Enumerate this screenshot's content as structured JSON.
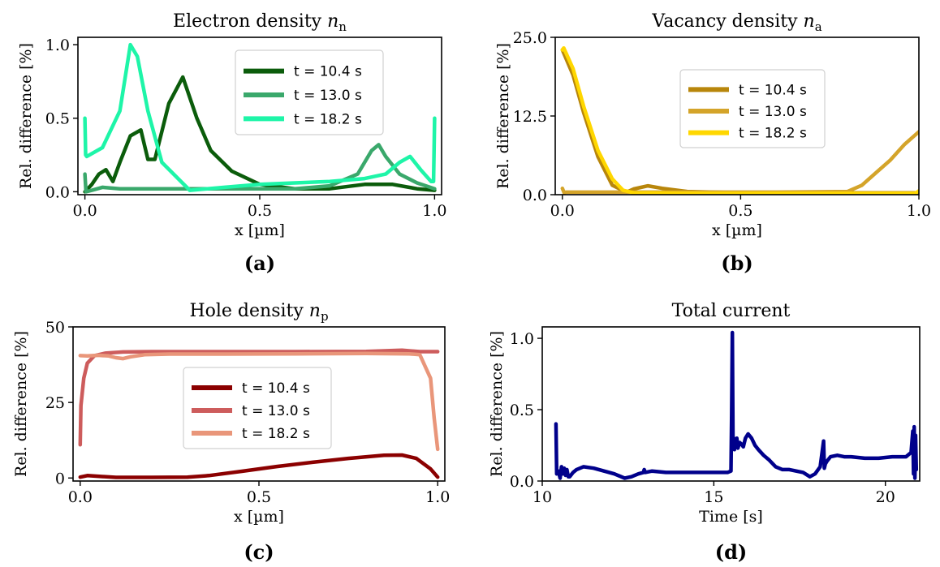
{
  "chart_data": [
    {
      "id": "a",
      "type": "line",
      "title": "Electron density n",
      "title_sub": "n",
      "xlabel": "x [µm]",
      "ylabel": "Rel. difference [%]",
      "panel_label": "(a)",
      "xlim": [
        -0.02,
        1.02
      ],
      "ylim": [
        -0.02,
        1.05
      ],
      "xticks": [
        0.0,
        0.5,
        1.0
      ],
      "xtick_labels": [
        "0.0",
        "0.5",
        "1.0"
      ],
      "yticks": [
        0.0,
        0.5,
        1.0
      ],
      "ytick_labels": [
        "0.0",
        "0.5",
        "1.0"
      ],
      "legend_position": "upper center",
      "series": [
        {
          "name": "t = 10.4 s",
          "color": "#0b5c0b",
          "x": [
            0.0,
            0.02,
            0.04,
            0.06,
            0.08,
            0.1,
            0.13,
            0.16,
            0.18,
            0.2,
            0.24,
            0.28,
            0.32,
            0.36,
            0.42,
            0.5,
            0.6,
            0.7,
            0.8,
            0.88,
            0.95,
            1.0
          ],
          "y": [
            0.0,
            0.05,
            0.12,
            0.15,
            0.07,
            0.2,
            0.38,
            0.42,
            0.22,
            0.22,
            0.6,
            0.78,
            0.5,
            0.28,
            0.14,
            0.05,
            0.02,
            0.02,
            0.05,
            0.05,
            0.02,
            0.01
          ]
        },
        {
          "name": "t = 13.0 s",
          "color": "#3aa86b",
          "x": [
            0.0,
            0.003,
            0.02,
            0.05,
            0.1,
            0.2,
            0.4,
            0.6,
            0.7,
            0.78,
            0.82,
            0.84,
            0.86,
            0.9,
            0.95,
            1.0
          ],
          "y": [
            0.12,
            0.0,
            0.01,
            0.03,
            0.02,
            0.02,
            0.02,
            0.02,
            0.04,
            0.12,
            0.28,
            0.32,
            0.24,
            0.12,
            0.06,
            0.02
          ]
        },
        {
          "name": "t = 18.2 s",
          "color": "#1ef5a8",
          "x": [
            0.0,
            0.002,
            0.005,
            0.05,
            0.1,
            0.13,
            0.15,
            0.18,
            0.22,
            0.3,
            0.4,
            0.5,
            0.6,
            0.7,
            0.8,
            0.86,
            0.9,
            0.93,
            0.96,
            0.99,
            0.997,
            1.0
          ],
          "y": [
            0.5,
            0.25,
            0.24,
            0.3,
            0.55,
            1.0,
            0.92,
            0.55,
            0.2,
            0.01,
            0.03,
            0.05,
            0.06,
            0.07,
            0.09,
            0.12,
            0.2,
            0.24,
            0.15,
            0.07,
            0.07,
            0.5
          ]
        }
      ]
    },
    {
      "id": "b",
      "type": "line",
      "title": "Vacancy density n",
      "title_sub": "a",
      "xlabel": "x [µm]",
      "ylabel": "Rel. difference [%]",
      "panel_label": "(b)",
      "xlim": [
        -0.02,
        1.0
      ],
      "ylim": [
        0.0,
        25.0
      ],
      "xticks": [
        0.0,
        0.5,
        1.0
      ],
      "xtick_labels": [
        "0.0",
        "0.5",
        "1.0"
      ],
      "yticks": [
        0.0,
        12.5,
        25.0
      ],
      "ytick_labels": [
        "0.0",
        "12.5",
        "25.0"
      ],
      "legend_position": "center",
      "series": [
        {
          "name": "t = 10.4 s",
          "color": "#b8860b",
          "x": [
            0.0,
            0.03,
            0.06,
            0.1,
            0.14,
            0.18,
            0.2,
            0.24,
            0.28,
            0.35,
            0.5,
            0.7,
            0.9,
            1.0
          ],
          "y": [
            23.0,
            19.0,
            13.0,
            6.0,
            1.5,
            0.4,
            0.9,
            1.4,
            1.0,
            0.5,
            0.3,
            0.3,
            0.3,
            0.3
          ]
        },
        {
          "name": "t = 13.0 s",
          "color": "#d4a42a",
          "x": [
            0.0,
            0.005,
            0.01,
            0.3,
            0.6,
            0.8,
            0.84,
            0.88,
            0.92,
            0.96,
            1.0
          ],
          "y": [
            1.0,
            0.3,
            0.4,
            0.4,
            0.4,
            0.5,
            1.5,
            3.5,
            5.5,
            8.0,
            10.0
          ]
        },
        {
          "name": "t = 18.2 s",
          "color": "#ffd700",
          "x": [
            0.0,
            0.004,
            0.03,
            0.06,
            0.1,
            0.14,
            0.17,
            0.2,
            0.4,
            0.6,
            0.8,
            0.99,
            1.0
          ],
          "y": [
            23.0,
            23.3,
            20.0,
            14.0,
            7.0,
            2.5,
            0.7,
            0.3,
            0.2,
            0.2,
            0.2,
            0.2,
            0.6
          ]
        }
      ]
    },
    {
      "id": "c",
      "type": "line",
      "title": "Hole density n",
      "title_sub": "p",
      "xlabel": "x [µm]",
      "ylabel": "Rel. difference [%]",
      "panel_label": "(c)",
      "xlim": [
        -0.02,
        1.02
      ],
      "ylim": [
        -1.0,
        50.0
      ],
      "xticks": [
        0.0,
        0.5,
        1.0
      ],
      "xtick_labels": [
        "0.0",
        "0.5",
        "1.0"
      ],
      "yticks": [
        0,
        25,
        50
      ],
      "ytick_labels": [
        "0",
        "25",
        "50"
      ],
      "legend_position": "center",
      "series": [
        {
          "name": "t = 10.4 s",
          "color": "#8b0000",
          "x": [
            0.0,
            0.02,
            0.1,
            0.2,
            0.3,
            0.36,
            0.45,
            0.55,
            0.65,
            0.75,
            0.85,
            0.9,
            0.94,
            0.98,
            1.0
          ],
          "y": [
            0.3,
            0.8,
            0.2,
            0.2,
            0.3,
            0.8,
            2.2,
            3.8,
            5.2,
            6.5,
            7.5,
            7.6,
            6.5,
            3.0,
            0.3
          ]
        },
        {
          "name": "t = 13.0 s",
          "color": "#cd5c5c",
          "x": [
            0.0,
            0.002,
            0.01,
            0.02,
            0.04,
            0.07,
            0.12,
            0.2,
            0.4,
            0.6,
            0.8,
            0.9,
            0.95,
            1.0
          ],
          "y": [
            11.0,
            24.0,
            33.0,
            38.0,
            40.5,
            41.3,
            41.7,
            41.8,
            41.8,
            41.8,
            41.9,
            42.3,
            41.8,
            41.8
          ]
        },
        {
          "name": "t = 18.2 s",
          "color": "#e9967a",
          "x": [
            0.0,
            0.02,
            0.05,
            0.08,
            0.1,
            0.12,
            0.14,
            0.18,
            0.25,
            0.4,
            0.6,
            0.8,
            0.92,
            0.95,
            0.98,
            0.99,
            1.0
          ],
          "y": [
            40.5,
            40.4,
            40.6,
            40.4,
            39.8,
            39.5,
            40.1,
            40.8,
            41.0,
            41.0,
            41.1,
            41.2,
            41.1,
            40.8,
            33.0,
            20.0,
            9.5
          ]
        }
      ]
    },
    {
      "id": "d",
      "type": "line",
      "title": "Total current",
      "xlabel": "Time [s]",
      "ylabel": "Rel. difference [%]",
      "panel_label": "(d)",
      "xlim": [
        10.0,
        21.0
      ],
      "ylim": [
        0.0,
        1.08
      ],
      "xticks": [
        10,
        15,
        20
      ],
      "xtick_labels": [
        "10",
        "15",
        "20"
      ],
      "yticks": [
        0.0,
        0.5,
        1.0
      ],
      "ytick_labels": [
        "0.0",
        "0.5",
        "1.0"
      ],
      "series": [
        {
          "color": "#00008b",
          "x": [
            10.4,
            10.42,
            10.47,
            10.52,
            10.56,
            10.6,
            10.64,
            10.68,
            10.72,
            10.76,
            10.8,
            10.9,
            11.0,
            11.2,
            11.5,
            11.8,
            12.1,
            12.4,
            12.6,
            12.8,
            12.95,
            12.97,
            13.0,
            13.2,
            13.6,
            14.0,
            14.5,
            15.0,
            15.4,
            15.5,
            15.52,
            15.54,
            15.56,
            15.58,
            15.6,
            15.62,
            15.64,
            15.67,
            15.7,
            15.75,
            15.8,
            15.86,
            15.92,
            16.0,
            16.1,
            16.2,
            16.3,
            16.45,
            16.6,
            16.8,
            17.0,
            17.2,
            17.4,
            17.6,
            17.8,
            17.95,
            18.1,
            18.2,
            18.22,
            18.25,
            18.3,
            18.4,
            18.6,
            18.8,
            19.0,
            19.4,
            19.8,
            20.2,
            20.6,
            20.75,
            20.8,
            20.82,
            20.84,
            20.86,
            20.88,
            20.9
          ],
          "y": [
            0.4,
            0.05,
            0.07,
            0.02,
            0.1,
            0.05,
            0.09,
            0.04,
            0.08,
            0.03,
            0.03,
            0.06,
            0.08,
            0.1,
            0.09,
            0.07,
            0.05,
            0.02,
            0.03,
            0.05,
            0.06,
            0.08,
            0.06,
            0.07,
            0.06,
            0.06,
            0.06,
            0.06,
            0.06,
            0.07,
            0.46,
            1.04,
            0.26,
            0.3,
            0.22,
            0.28,
            0.25,
            0.3,
            0.23,
            0.27,
            0.26,
            0.24,
            0.3,
            0.33,
            0.3,
            0.25,
            0.22,
            0.18,
            0.15,
            0.1,
            0.08,
            0.08,
            0.07,
            0.06,
            0.03,
            0.05,
            0.1,
            0.28,
            0.09,
            0.12,
            0.14,
            0.17,
            0.18,
            0.17,
            0.17,
            0.16,
            0.16,
            0.17,
            0.17,
            0.2,
            0.35,
            0.05,
            0.38,
            0.02,
            0.32,
            0.08
          ]
        }
      ]
    }
  ]
}
